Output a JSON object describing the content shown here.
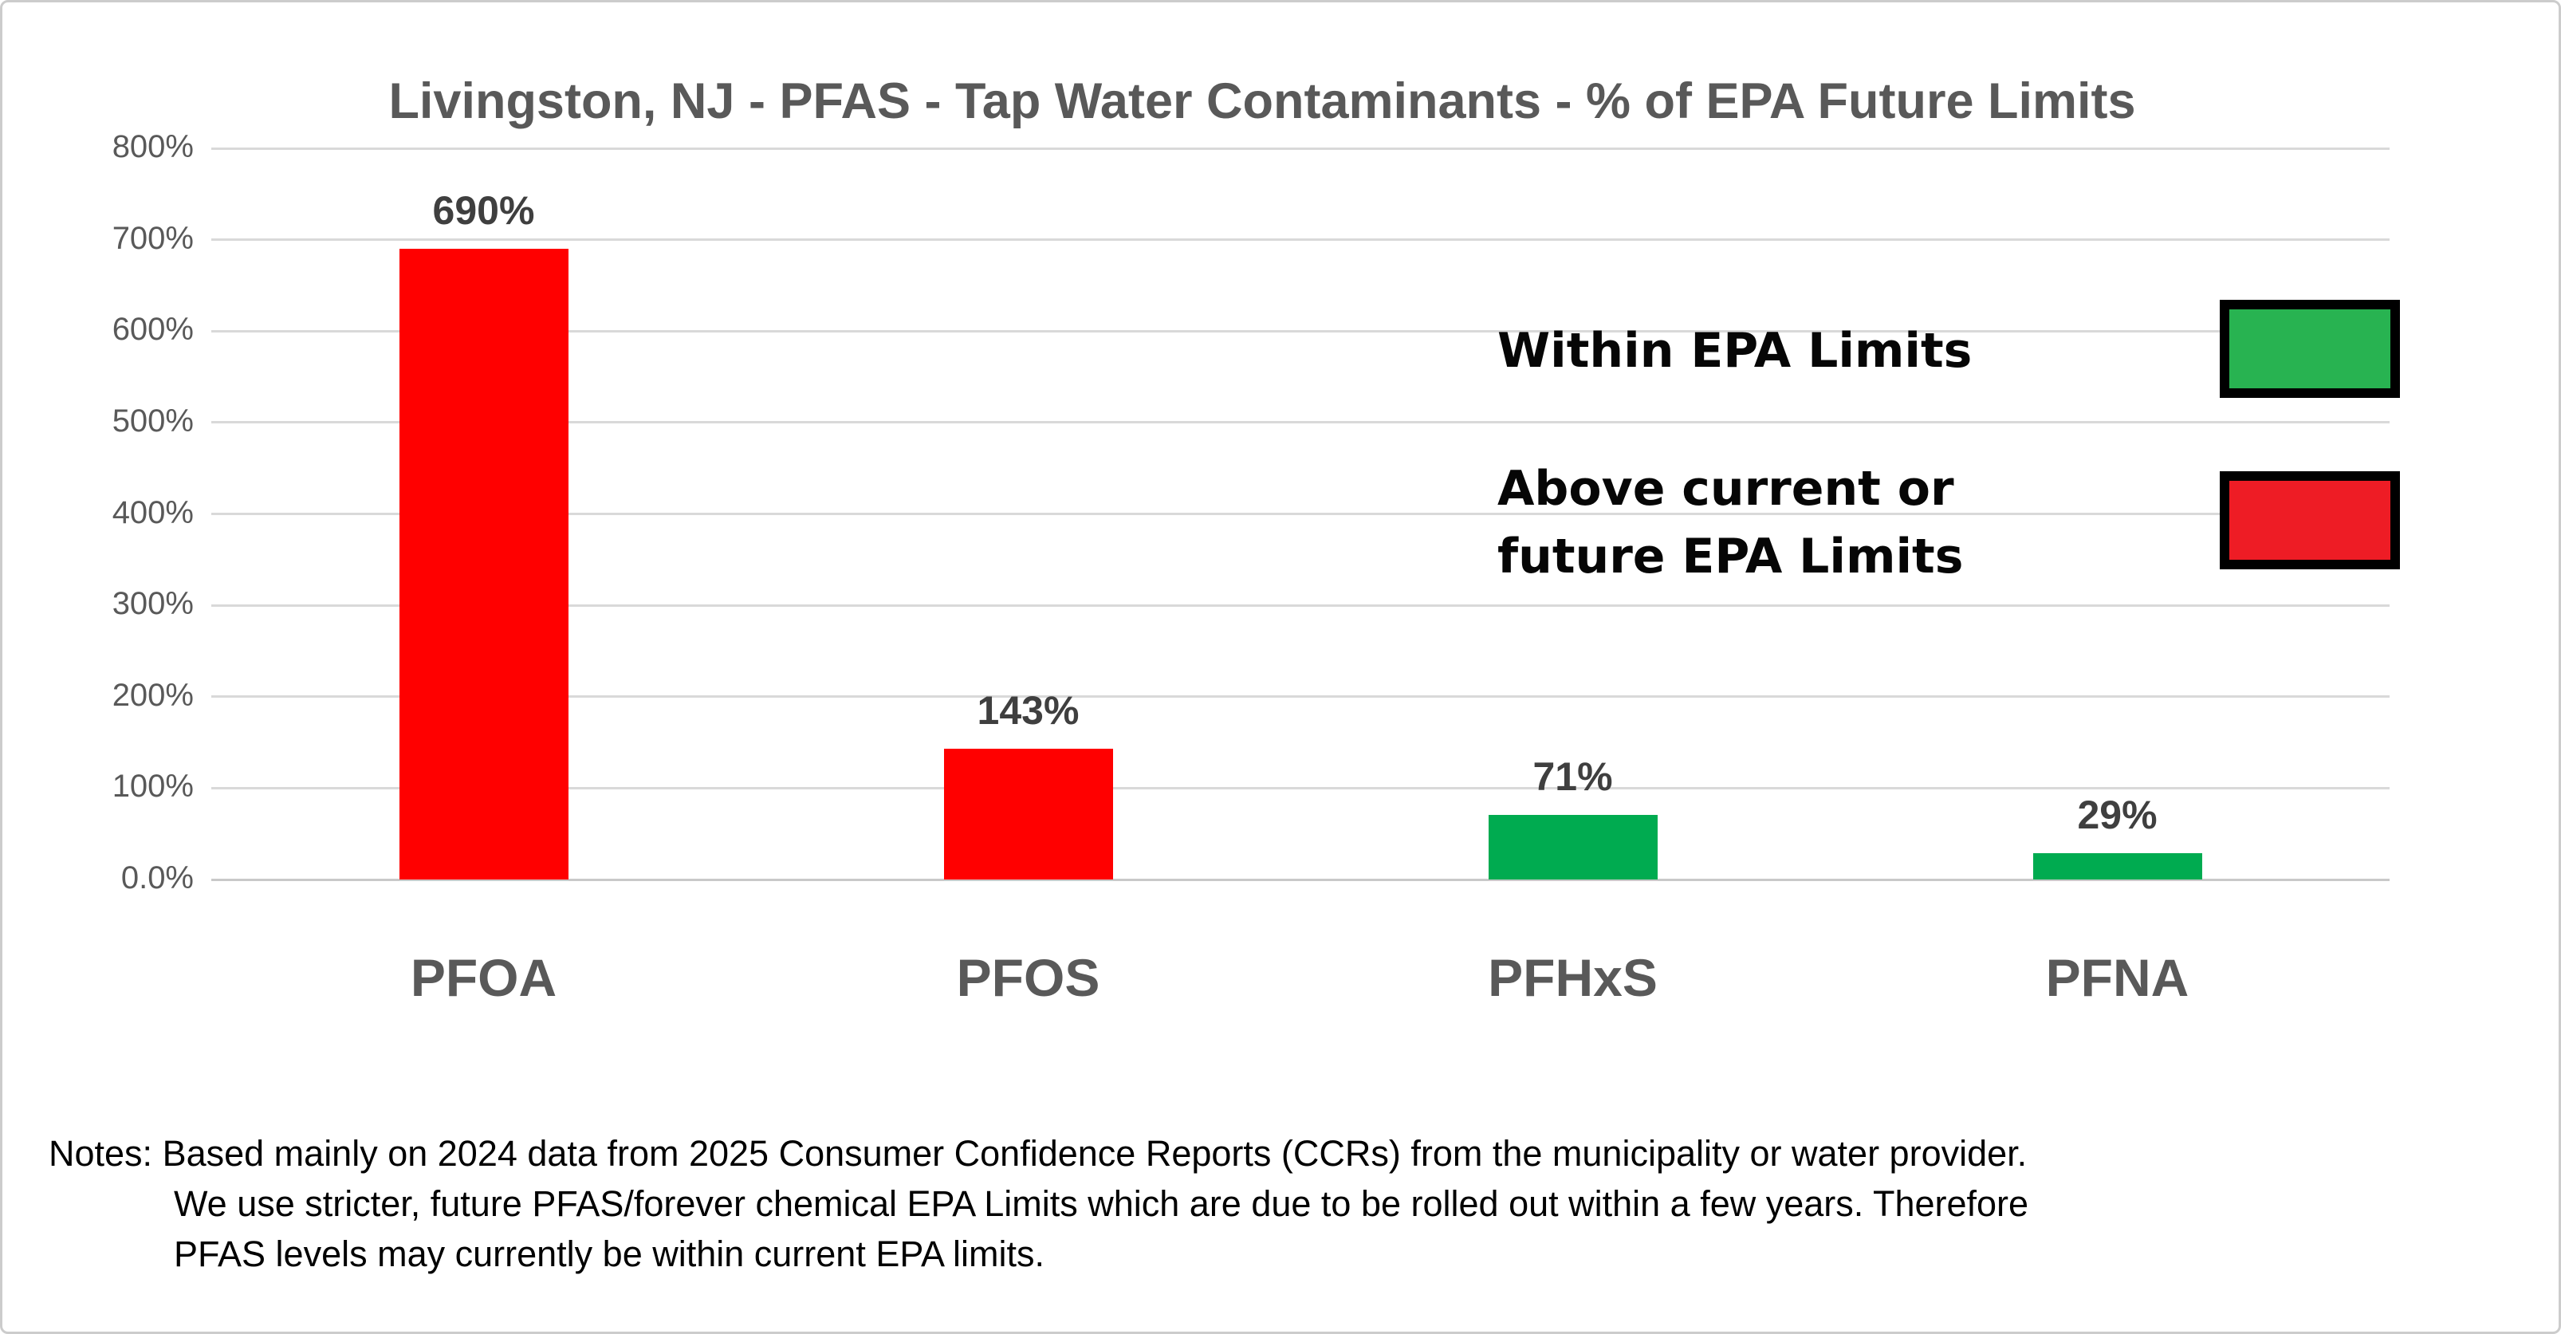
{
  "chart_data": {
    "type": "bar",
    "title": "Livingston, NJ - PFAS - Tap Water Contaminants - % of EPA Future Limits",
    "categories": [
      "PFOA",
      "PFOS",
      "PFHxS",
      "PFNA"
    ],
    "values": [
      690,
      143,
      71,
      29
    ],
    "value_labels": [
      "690%",
      "143%",
      "71%",
      "29%"
    ],
    "bar_colors": [
      "#ff0000",
      "#ff0000",
      "#00ab50",
      "#00ab50"
    ],
    "xlabel": "",
    "ylabel": "",
    "ylim": [
      0,
      800
    ],
    "ytick_step": 100,
    "ytick_labels": [
      "0.0%",
      "100%",
      "200%",
      "300%",
      "400%",
      "500%",
      "600%",
      "700%",
      "800%"
    ],
    "grid": true,
    "legend_position": "right-upper",
    "legend": [
      {
        "label": "Within EPA Limits",
        "color": "#28b351"
      },
      {
        "label": "Above current or future EPA Limits",
        "color": "#ee1c25"
      }
    ]
  },
  "legend": {
    "within_label": "Within EPA Limits",
    "above_line1": "Above current or",
    "above_line2": "future EPA Limits",
    "within_color": "#28b351",
    "above_color": "#ee1c25"
  },
  "notes": {
    "prefix": "Notes:",
    "line1": "Based mainly on 2024 data from 2025 Consumer Confidence Reports (CCRs) from the municipality or water provider.",
    "line2": "We use stricter, future PFAS/forever chemical EPA Limits which are due to be rolled out within a few years.  Therefore",
    "line3": "PFAS  levels may currently be within current EPA limits."
  },
  "colors": {
    "title_text": "#595959",
    "tick_text": "#595959",
    "value_text": "#3f3f3f",
    "category_text": "#595959",
    "gridline": "#d9d9d9",
    "bar_red": "#ff0000",
    "bar_green": "#00ab50",
    "legend_green": "#28b351",
    "legend_red": "#ee1c25"
  }
}
